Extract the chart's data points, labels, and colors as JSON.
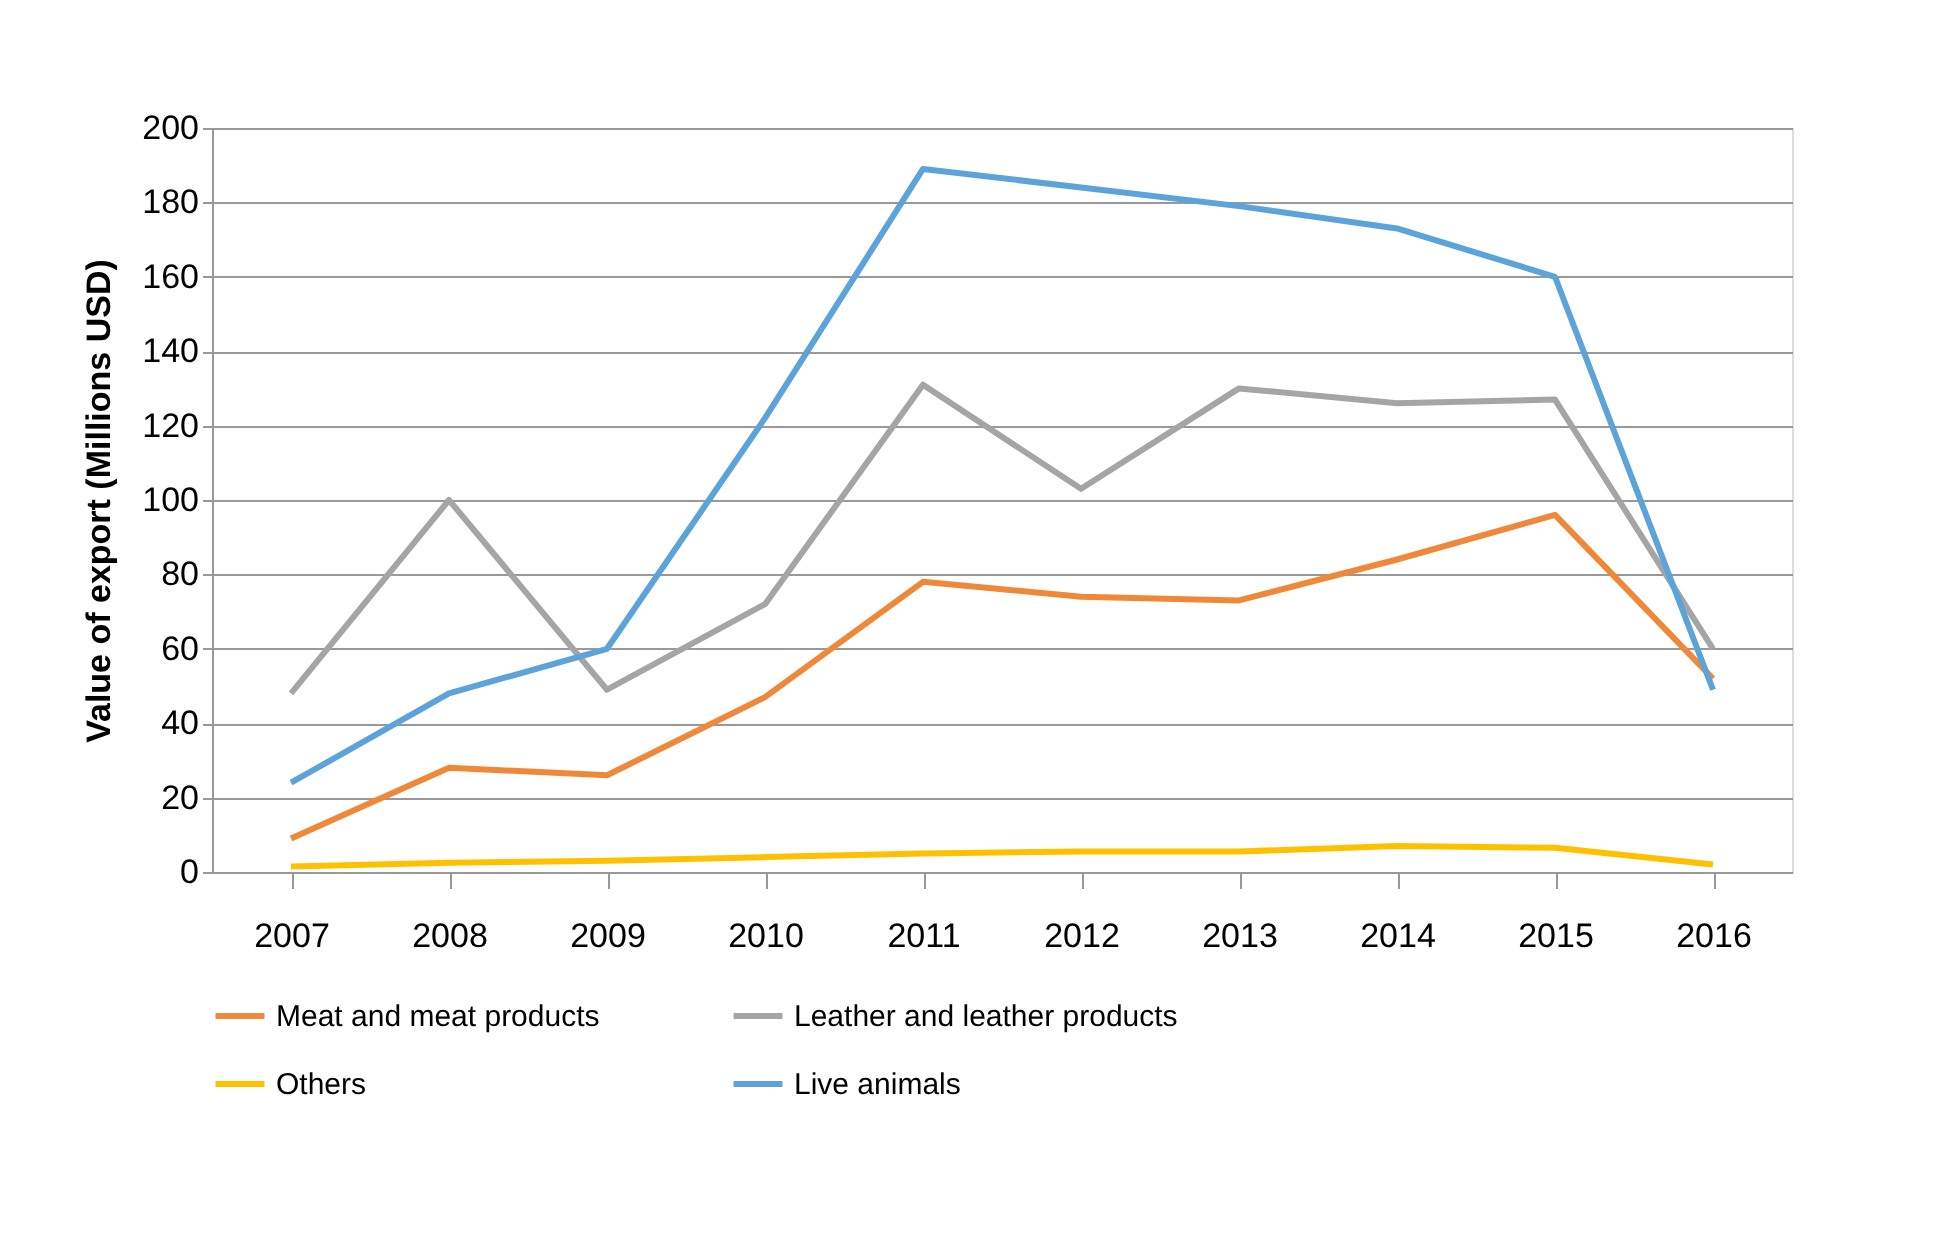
{
  "chart_data": {
    "type": "line",
    "ylabel": "Value of export (Millions USD)",
    "categories": [
      "2007",
      "2008",
      "2009",
      "2010",
      "2011",
      "2012",
      "2013",
      "2014",
      "2015",
      "2016"
    ],
    "ylim": [
      0,
      200
    ],
    "yticks": [
      0,
      20,
      40,
      60,
      80,
      100,
      120,
      140,
      160,
      180,
      200
    ],
    "grid": "y",
    "legend": "bottom",
    "marker": "none",
    "line_style": "solid",
    "series": [
      {
        "name": "Meat and meat products",
        "color": "#f0883a",
        "values": [
          9,
          28,
          26,
          47,
          78,
          74,
          73,
          84,
          96,
          52
        ]
      },
      {
        "name": "Leather and leather products",
        "color": "#a5a5a5",
        "values": [
          48,
          100,
          49,
          72,
          131,
          103,
          130,
          126,
          127,
          60
        ]
      },
      {
        "name": "Others",
        "color": "#ffc000",
        "values": [
          1.5,
          2.5,
          3,
          4,
          5,
          5.5,
          5.5,
          7,
          6.5,
          2
        ]
      },
      {
        "name": "Live animals",
        "color": "#5ba3d9",
        "values": [
          24,
          48,
          60,
          122,
          189,
          184,
          179,
          173,
          160,
          49
        ]
      }
    ]
  }
}
